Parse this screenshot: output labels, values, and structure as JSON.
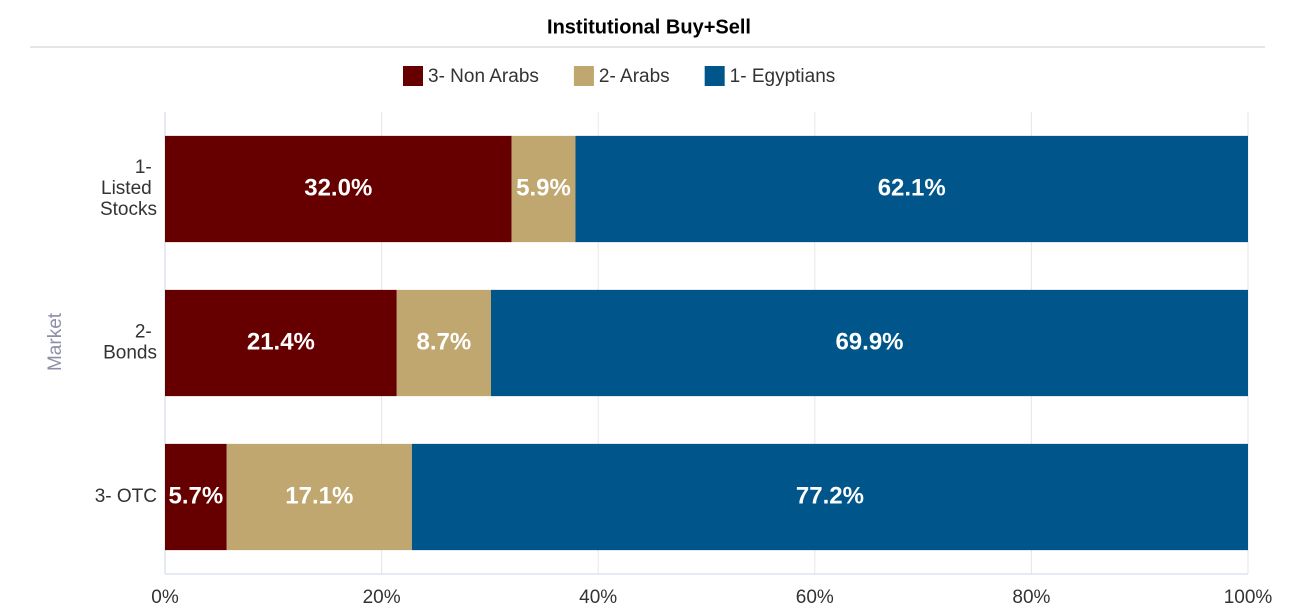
{
  "chart_data": {
    "type": "stacked-bar-horizontal",
    "title": "Institutional Buy+Sell",
    "y_label": "Market",
    "categories": [
      "1- Listed Stocks",
      "2- Bonds",
      "3- OTC"
    ],
    "series": [
      {
        "name": "3- Non Arabs",
        "color": "#660000",
        "values": [
          32.0,
          21.4,
          5.7
        ],
        "value_labels": [
          "32.0%",
          "21.4%",
          "5.7%"
        ]
      },
      {
        "name": "2- Arabs",
        "color": "#bfa76f",
        "values": [
          5.9,
          8.7,
          17.1
        ],
        "value_labels": [
          "5.9%",
          "8.7%",
          "17.1%"
        ]
      },
      {
        "name": "1- Egyptians",
        "color": "#00568a",
        "values": [
          62.1,
          69.9,
          77.2
        ],
        "value_labels": [
          "62.1%",
          "69.9%",
          "77.2%"
        ]
      }
    ],
    "xlim": [
      0,
      100
    ],
    "xticks": [
      {
        "value": 0,
        "label": "0%"
      },
      {
        "value": 20,
        "label": "20%"
      },
      {
        "value": 40,
        "label": "40%"
      },
      {
        "value": 60,
        "label": "60%"
      },
      {
        "value": 80,
        "label": "80%"
      },
      {
        "value": 100,
        "label": "100%"
      }
    ],
    "grid": true,
    "legend": "top"
  }
}
